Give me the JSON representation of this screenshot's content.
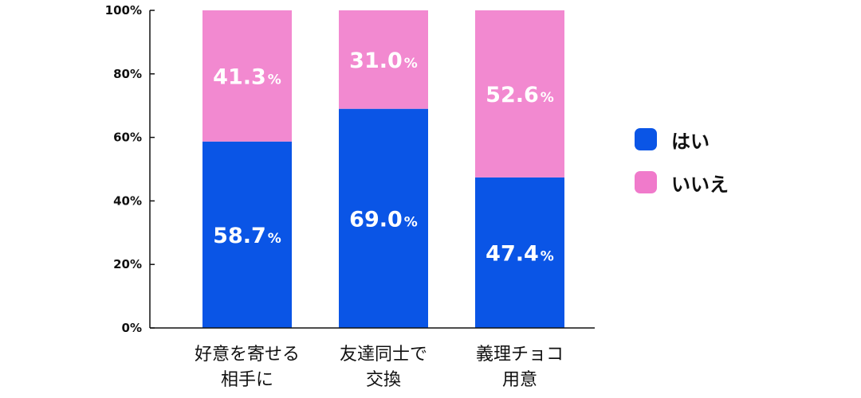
{
  "chart_data": {
    "type": "bar",
    "stacked": true,
    "categories": [
      [
        "好意を寄せる",
        "相手に"
      ],
      [
        "友達同士で",
        "交換"
      ],
      [
        "義理チョコ",
        "用意"
      ]
    ],
    "series": [
      {
        "name": "はい",
        "color": "#0a55e6",
        "values": [
          58.7,
          69.0,
          47.4
        ]
      },
      {
        "name": "いいえ",
        "color": "#f289d0",
        "values": [
          41.3,
          31.0,
          52.6
        ]
      }
    ],
    "ylim": [
      0,
      100
    ],
    "yticks": [
      "0%",
      "20%",
      "40%",
      "60%",
      "80%",
      "100%"
    ],
    "value_labels": [
      [
        "58.7",
        "69.0",
        "47.4"
      ],
      [
        "41.3",
        "31.0",
        "52.6"
      ]
    ],
    "value_suffix": "%",
    "legend": "right",
    "grid": false,
    "xlabel": "",
    "ylabel": "",
    "title": ""
  },
  "legend": {
    "items": [
      {
        "label": "はい",
        "color": "#0a55e6"
      },
      {
        "label": "いいえ",
        "color": "#f07acb"
      }
    ]
  }
}
